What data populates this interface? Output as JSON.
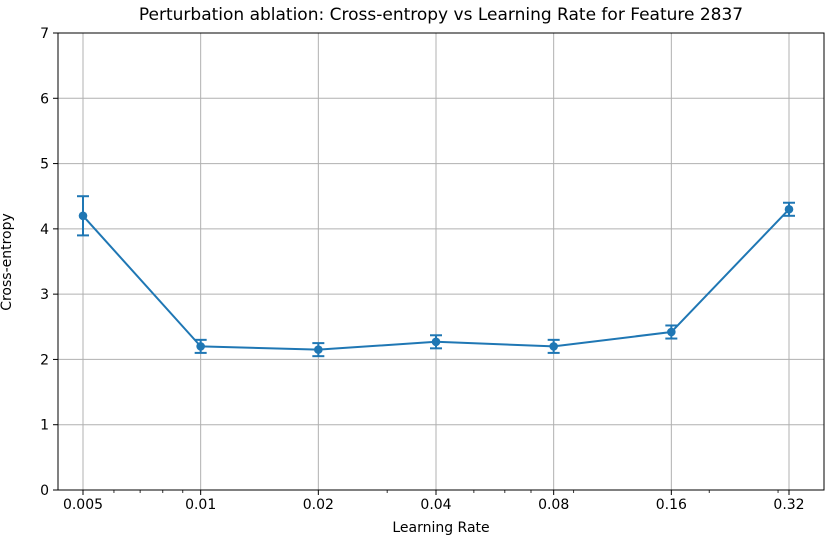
{
  "chart_data": {
    "type": "line",
    "title": "Perturbation ablation: Cross-entropy vs Learning Rate for Feature 2837",
    "xlabel": "Learning Rate",
    "ylabel": "Cross-entropy",
    "xscale": "log",
    "x": [
      0.005,
      0.01,
      0.02,
      0.04,
      0.08,
      0.16,
      0.32
    ],
    "x_tick_labels": [
      "0.005",
      "0.01",
      "0.02",
      "0.04",
      "0.08",
      "0.16",
      "0.32"
    ],
    "x_minor_ticks": [
      0.006,
      0.007,
      0.008,
      0.009,
      0.03,
      0.05,
      0.06,
      0.07,
      0.09,
      0.2,
      0.3
    ],
    "y_ticks": [
      0,
      1,
      2,
      3,
      4,
      5,
      6,
      7
    ],
    "ylim": [
      0,
      7
    ],
    "series": [
      {
        "name": "cross-entropy",
        "values": [
          4.2,
          2.2,
          2.15,
          2.27,
          2.2,
          2.42,
          4.3
        ],
        "yerr": [
          0.3,
          0.1,
          0.1,
          0.1,
          0.1,
          0.1,
          0.1
        ],
        "color": "#1f77b4",
        "marker": "circle"
      }
    ],
    "grid": true,
    "grid_color": "#b0b0b0",
    "spine_color": "#000000",
    "background_color": "#ffffff",
    "legend": "none"
  }
}
